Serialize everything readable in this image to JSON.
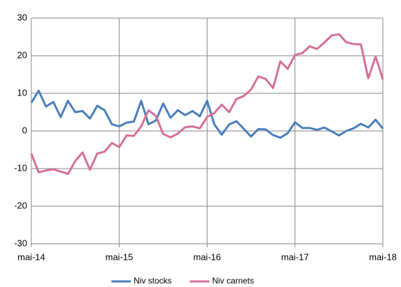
{
  "chart_data": {
    "type": "line",
    "categories": [
      "mai-14",
      null,
      null,
      null,
      null,
      null,
      null,
      null,
      null,
      null,
      null,
      null,
      "mai-15",
      null,
      null,
      null,
      null,
      null,
      null,
      null,
      null,
      null,
      null,
      null,
      "mai-16",
      null,
      null,
      null,
      null,
      null,
      null,
      null,
      null,
      null,
      null,
      null,
      "mai-17",
      null,
      null,
      null,
      null,
      null,
      null,
      null,
      null,
      null,
      null,
      null,
      "mai-18"
    ],
    "series": [
      {
        "name": "Niv stocks",
        "color": "#4a7ebb",
        "values": [
          7.5,
          10.7,
          6.5,
          7.7,
          3.7,
          8,
          5,
          5.3,
          3.3,
          6.7,
          5.5,
          1.8,
          1.2,
          2.2,
          2.5,
          8,
          1.8,
          2.8,
          7.3,
          3.5,
          5.5,
          4.2,
          5.3,
          3.9,
          8,
          1.7,
          -1,
          1.7,
          2.6,
          0.6,
          -1.5,
          0.5,
          0.4,
          -1.1,
          -1.8,
          -0.6,
          2.3,
          0.8,
          0.8,
          0.3,
          0.9,
          -0.1,
          -1.2,
          0,
          0.7,
          1.9,
          0.9,
          3,
          0.6
        ]
      },
      {
        "name": "Niv carnets",
        "color": "#d46f98",
        "values": [
          -6,
          -11,
          -10.5,
          -10.2,
          -10.8,
          -11.4,
          -8,
          -5.7,
          -10.3,
          -6,
          -5.5,
          -3.2,
          -4.3,
          -1.2,
          -1.3,
          1.2,
          5.5,
          4,
          -0.8,
          -1.7,
          -0.7,
          1,
          1.2,
          0.7,
          3.7,
          4.8,
          7,
          5,
          8.5,
          9.3,
          11,
          14.5,
          13.8,
          11.4,
          18.5,
          16.5,
          20.2,
          20.7,
          22.5,
          21.8,
          23.5,
          25.4,
          25.7,
          23.6,
          23.1,
          23,
          14,
          19.8,
          13.7
        ]
      }
    ],
    "ylim": [
      -30,
      30
    ],
    "yticks": [
      -30,
      -20,
      -10,
      0,
      10,
      20,
      30
    ],
    "grid": true,
    "legend": "bottom"
  }
}
